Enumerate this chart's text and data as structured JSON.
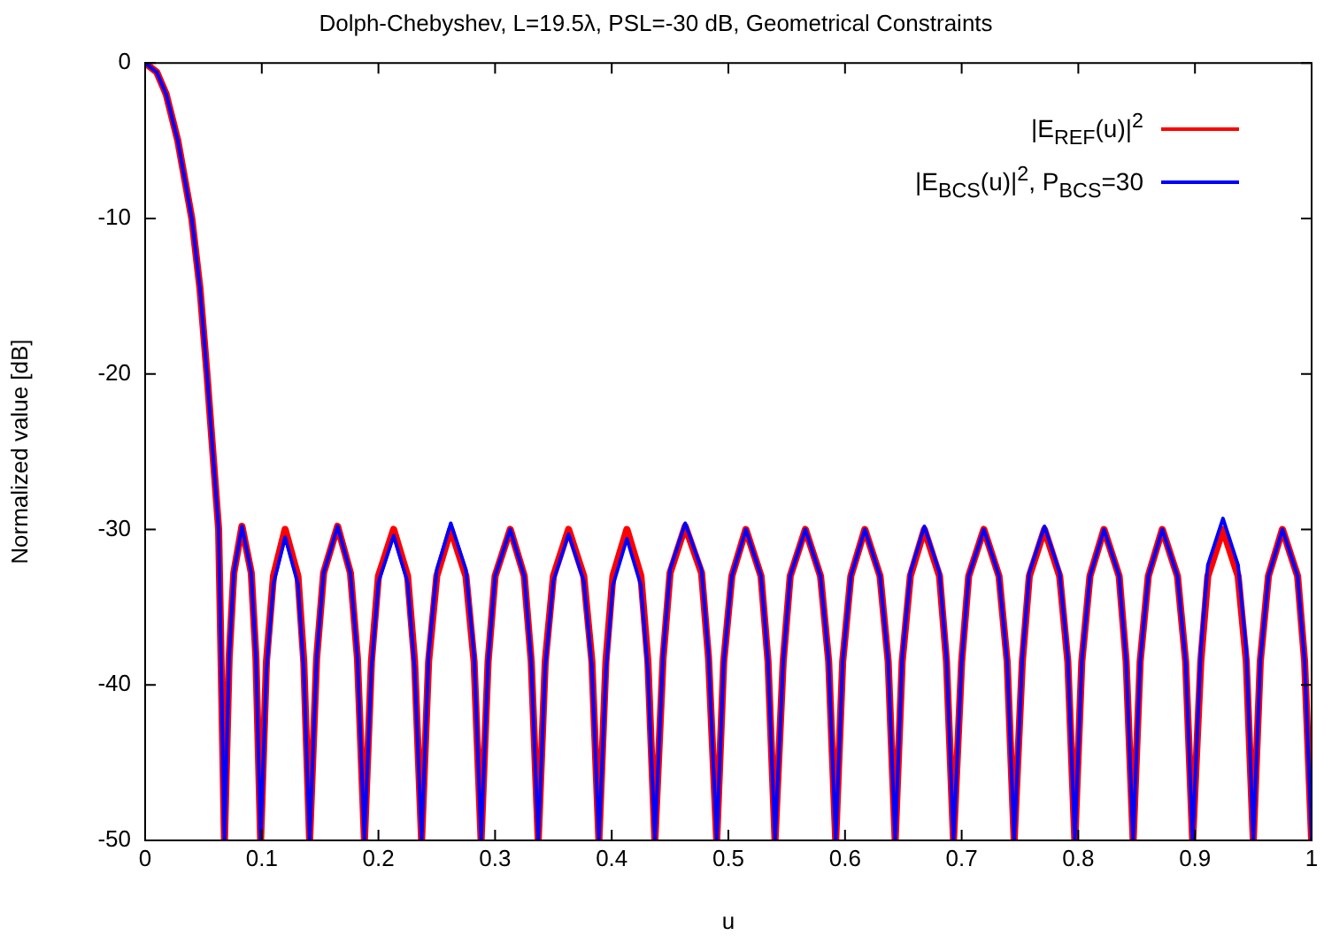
{
  "chart_data": {
    "type": "line",
    "title": "Dolph-Chebyshev, L=19.5λ, PSL=-30 dB, Geometrical Constraints",
    "xlabel": "u",
    "ylabel": "Normalized value [dB]",
    "x": [
      0,
      0.01,
      0.018,
      0.028,
      0.04,
      0.047,
      0.053,
      0.058,
      0.063,
      0.068,
      0.072,
      0.076,
      0.083,
      0.091,
      0.095,
      0.099,
      0.104,
      0.11,
      0.12,
      0.131,
      0.136,
      0.141,
      0.147,
      0.153,
      0.165,
      0.176,
      0.182,
      0.188,
      0.194,
      0.2,
      0.213,
      0.225,
      0.231,
      0.237,
      0.243,
      0.25,
      0.262,
      0.275,
      0.282,
      0.288,
      0.294,
      0.3,
      0.313,
      0.325,
      0.331,
      0.337,
      0.343,
      0.35,
      0.363,
      0.376,
      0.383,
      0.389,
      0.395,
      0.401,
      0.413,
      0.425,
      0.431,
      0.437,
      0.444,
      0.45,
      0.463,
      0.477,
      0.483,
      0.49,
      0.496,
      0.503,
      0.515,
      0.528,
      0.534,
      0.54,
      0.547,
      0.553,
      0.566,
      0.579,
      0.586,
      0.592,
      0.598,
      0.605,
      0.617,
      0.63,
      0.637,
      0.643,
      0.649,
      0.656,
      0.668,
      0.681,
      0.687,
      0.693,
      0.7,
      0.706,
      0.719,
      0.732,
      0.739,
      0.745,
      0.752,
      0.758,
      0.771,
      0.784,
      0.791,
      0.797,
      0.803,
      0.81,
      0.822,
      0.835,
      0.841,
      0.847,
      0.853,
      0.86,
      0.872,
      0.885,
      0.892,
      0.898,
      0.905,
      0.911,
      0.924,
      0.937,
      0.944,
      0.95,
      0.956,
      0.963,
      0.975,
      0.988,
      0.994,
      1.0
    ],
    "series": [
      {
        "name": "|E$_{REF}$(u)|$^{2}$",
        "color": "#ff0000",
        "values": [
          0,
          -0.6,
          -2,
          -5,
          -10,
          -14.5,
          -20,
          -25,
          -30,
          -50,
          -38.3,
          -32.8,
          -29.8,
          -32.8,
          -38.3,
          -50,
          -38.5,
          -33,
          -30,
          -33,
          -38.5,
          -50,
          -38.3,
          -32.8,
          -29.8,
          -32.8,
          -38.3,
          -50,
          -38.5,
          -33,
          -30,
          -33,
          -38.5,
          -50,
          -38.5,
          -33,
          -30,
          -33,
          -38.5,
          -50,
          -38.5,
          -33,
          -30,
          -33,
          -38.5,
          -50,
          -38.5,
          -33,
          -30,
          -33,
          -38.5,
          -50,
          -38.5,
          -33,
          -30,
          -33,
          -38.5,
          -50,
          -38.3,
          -32.8,
          -29.8,
          -32.8,
          -38.3,
          -50,
          -38.5,
          -33,
          -30,
          -33,
          -38.5,
          -50,
          -38.5,
          -33,
          -30,
          -33,
          -38.5,
          -50,
          -38.5,
          -33,
          -30,
          -33,
          -38.5,
          -50,
          -38.5,
          -33,
          -30,
          -33,
          -38.5,
          -50,
          -38.5,
          -33,
          -30,
          -33,
          -38.5,
          -50,
          -38.5,
          -33,
          -30,
          -33,
          -38.5,
          -50,
          -38.5,
          -33,
          -30,
          -33,
          -38.5,
          -50,
          -38.5,
          -33,
          -30,
          -33,
          -38.5,
          -50,
          -38.5,
          -33,
          -30,
          -33,
          -38.5,
          -50,
          -38.5,
          -33,
          -30,
          -33,
          -38.5,
          -50
        ]
      },
      {
        "name": "|E$_{BCS}$(u)|$^{2}$, P$_{BCS}$=30",
        "color": "#0000ff",
        "values": [
          0,
          -0.6,
          -2,
          -5,
          -10,
          -14.5,
          -20,
          -25,
          -30,
          -50,
          -38.3,
          -32.8,
          -29.8,
          -32.8,
          -38.3,
          -50,
          -39,
          -33.5,
          -30.5,
          -33.5,
          -39,
          -50,
          -38.3,
          -32.8,
          -29.8,
          -32.8,
          -38.3,
          -50,
          -38.9,
          -33.4,
          -30.4,
          -33.4,
          -38.9,
          -50,
          -38.1,
          -32.6,
          -29.6,
          -32.6,
          -38.1,
          -50,
          -38.5,
          -33,
          -30,
          -33,
          -38.5,
          -50,
          -38.8,
          -33.3,
          -30.3,
          -33.3,
          -38.8,
          -50,
          -39.1,
          -33.6,
          -30.6,
          -33.6,
          -39.1,
          -50,
          -38.1,
          -32.6,
          -29.6,
          -32.6,
          -38.1,
          -50,
          -38.5,
          -33,
          -30,
          -33,
          -38.5,
          -50,
          -38.5,
          -33,
          -30,
          -33,
          -38.5,
          -50,
          -38.5,
          -33,
          -30,
          -33,
          -38.5,
          -50,
          -38.3,
          -32.8,
          -29.8,
          -32.8,
          -38.3,
          -50,
          -38.5,
          -33,
          -30,
          -33,
          -38.5,
          -50,
          -38.3,
          -32.8,
          -29.8,
          -32.8,
          -38.3,
          -50,
          -38.5,
          -33,
          -30,
          -33,
          -38.5,
          -50,
          -38.5,
          -33,
          -30,
          -33,
          -38.5,
          -50,
          -37.8,
          -32.3,
          -29.3,
          -32.3,
          -37.8,
          -50,
          -38.5,
          -33,
          -30,
          -33,
          -38.5,
          -50
        ]
      }
    ],
    "xlim": [
      0,
      1
    ],
    "xticks": [
      0,
      0.1,
      0.2,
      0.3,
      0.4,
      0.5,
      0.6,
      0.7,
      0.8,
      0.9,
      1
    ],
    "ylim": [
      -50,
      0
    ],
    "yticks": [
      -50,
      -40,
      -30,
      -20,
      -10,
      0
    ],
    "grid": false,
    "legend": "top right",
    "marker": "none",
    "line_style": "solid"
  }
}
